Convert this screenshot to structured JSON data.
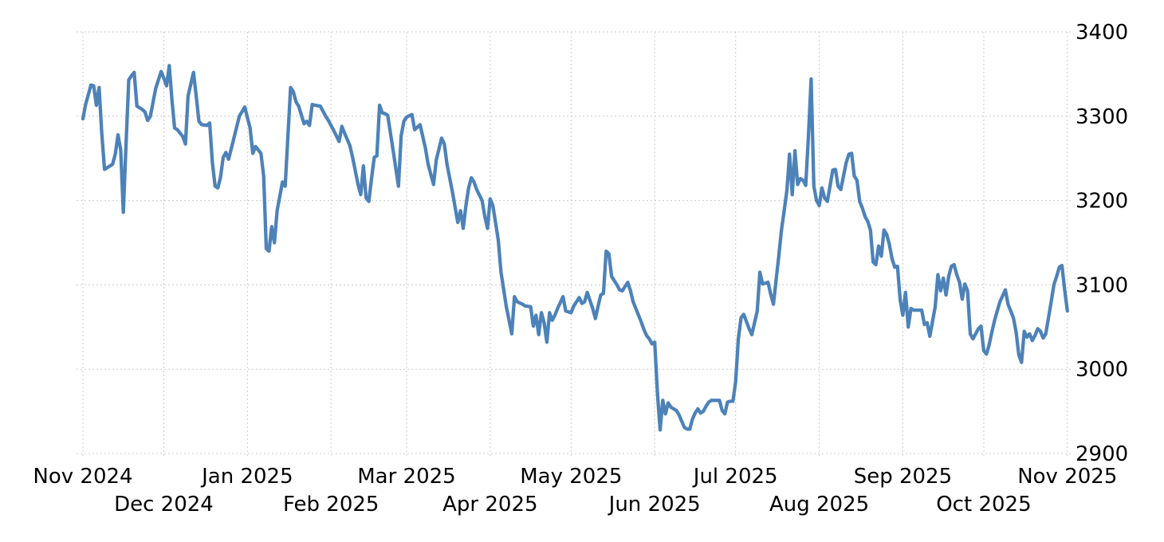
{
  "page": {
    "background": "#ffffff"
  },
  "chart_data": {
    "type": "line",
    "grid": "dotted",
    "legend": "none",
    "line_color": "#4d82b9",
    "grid_color": "#cccccc",
    "text_color": "#000000",
    "x_range": [
      "2024-11-01",
      "2025-11-01"
    ],
    "x_axis": {
      "months": [
        {
          "label": "Nov 2024",
          "date": "2024-11-01",
          "row": 0
        },
        {
          "label": "Dec 2024",
          "date": "2024-12-01",
          "row": 1
        },
        {
          "label": "Jan 2025",
          "date": "2025-01-01",
          "row": 0
        },
        {
          "label": "Feb 2025",
          "date": "2025-02-01",
          "row": 1
        },
        {
          "label": "Mar 2025",
          "date": "2025-03-01",
          "row": 0
        },
        {
          "label": "Apr 2025",
          "date": "2025-04-01",
          "row": 1
        },
        {
          "label": "May 2025",
          "date": "2025-05-01",
          "row": 0
        },
        {
          "label": "Jun 2025",
          "date": "2025-06-01",
          "row": 1
        },
        {
          "label": "Jul 2025",
          "date": "2025-07-01",
          "row": 0
        },
        {
          "label": "Aug 2025",
          "date": "2025-08-01",
          "row": 1
        },
        {
          "label": "Sep 2025",
          "date": "2025-09-01",
          "row": 0
        },
        {
          "label": "Oct 2025",
          "date": "2025-10-01",
          "row": 1
        },
        {
          "label": "Nov 2025",
          "date": "2025-11-01",
          "row": 0
        }
      ]
    },
    "y_axis": {
      "side": "right",
      "min": 2900,
      "max": 3400,
      "ticks": [
        2900,
        3000,
        3100,
        3200,
        3300,
        3400
      ]
    },
    "dates": [
      "2024-11-01",
      "2024-11-02",
      "2024-11-04",
      "2024-11-05",
      "2024-11-06",
      "2024-11-07",
      "2024-11-08",
      "2024-11-09",
      "2024-11-12",
      "2024-11-13",
      "2024-11-14",
      "2024-11-15",
      "2024-11-16",
      "2024-11-17",
      "2024-11-18",
      "2024-11-19",
      "2024-11-20",
      "2024-11-21",
      "2024-11-23",
      "2024-11-24",
      "2024-11-25",
      "2024-11-26",
      "2024-11-28",
      "2024-11-30",
      "2024-12-01",
      "2024-12-02",
      "2024-12-03",
      "2024-12-04",
      "2024-12-05",
      "2024-12-06",
      "2024-12-08",
      "2024-12-09",
      "2024-12-10",
      "2024-12-12",
      "2024-12-13",
      "2024-12-14",
      "2024-12-15",
      "2024-12-17",
      "2024-12-18",
      "2024-12-19",
      "2024-12-20",
      "2024-12-21",
      "2024-12-22",
      "2024-12-23",
      "2024-12-24",
      "2024-12-25",
      "2024-12-27",
      "2024-12-29",
      "2024-12-31",
      "2025-01-01",
      "2025-01-02",
      "2025-01-03",
      "2025-01-04",
      "2025-01-06",
      "2025-01-07",
      "2025-01-08",
      "2025-01-09",
      "2025-01-10",
      "2025-01-11",
      "2025-01-12",
      "2025-01-14",
      "2025-01-15",
      "2025-01-16",
      "2025-01-17",
      "2025-01-18",
      "2025-01-19",
      "2025-01-20",
      "2025-01-22",
      "2025-01-23",
      "2025-01-24",
      "2025-01-25",
      "2025-01-26",
      "2025-01-28",
      "2025-01-30",
      "2025-01-31",
      "2025-02-01",
      "2025-02-02",
      "2025-02-04",
      "2025-02-05",
      "2025-02-06",
      "2025-02-08",
      "2025-02-09",
      "2025-02-11",
      "2025-02-12",
      "2025-02-13",
      "2025-02-14",
      "2025-02-15",
      "2025-02-16",
      "2025-02-17",
      "2025-02-18",
      "2025-02-19",
      "2025-02-20",
      "2025-02-21",
      "2025-02-22",
      "2025-02-24",
      "2025-02-26",
      "2025-02-27",
      "2025-02-28",
      "2025-03-01",
      "2025-03-03",
      "2025-03-04",
      "2025-03-06",
      "2025-03-08",
      "2025-03-09",
      "2025-03-11",
      "2025-03-12",
      "2025-03-14",
      "2025-03-15",
      "2025-03-16",
      "2025-03-18",
      "2025-03-20",
      "2025-03-21",
      "2025-03-22",
      "2025-03-23",
      "2025-03-24",
      "2025-03-25",
      "2025-03-26",
      "2025-03-27",
      "2025-03-29",
      "2025-03-30",
      "2025-03-31",
      "2025-04-01",
      "2025-04-02",
      "2025-04-04",
      "2025-04-05",
      "2025-04-07",
      "2025-04-08",
      "2025-04-09",
      "2025-04-10",
      "2025-04-11",
      "2025-04-13",
      "2025-04-14",
      "2025-04-16",
      "2025-04-17",
      "2025-04-18",
      "2025-04-19",
      "2025-04-20",
      "2025-04-21",
      "2025-04-22",
      "2025-04-23",
      "2025-04-24",
      "2025-04-25",
      "2025-04-26",
      "2025-04-27",
      "2025-04-28",
      "2025-04-29",
      "2025-05-01",
      "2025-05-02",
      "2025-05-04",
      "2025-05-05",
      "2025-05-06",
      "2025-05-07",
      "2025-05-09",
      "2025-05-10",
      "2025-05-11",
      "2025-05-12",
      "2025-05-13",
      "2025-05-14",
      "2025-05-15",
      "2025-05-16",
      "2025-05-17",
      "2025-05-18",
      "2025-05-19",
      "2025-05-20",
      "2025-05-21",
      "2025-05-22",
      "2025-05-23",
      "2025-05-24",
      "2025-05-25",
      "2025-05-26",
      "2025-05-27",
      "2025-05-28",
      "2025-05-29",
      "2025-05-30",
      "2025-05-31",
      "2025-06-01",
      "2025-06-02",
      "2025-06-03",
      "2025-06-04",
      "2025-06-05",
      "2025-06-06",
      "2025-06-07",
      "2025-06-08",
      "2025-06-09",
      "2025-06-10",
      "2025-06-12",
      "2025-06-13",
      "2025-06-14",
      "2025-06-15",
      "2025-06-16",
      "2025-06-17",
      "2025-06-18",
      "2025-06-19",
      "2025-06-20",
      "2025-06-21",
      "2025-06-22",
      "2025-06-23",
      "2025-06-25",
      "2025-06-26",
      "2025-06-27",
      "2025-06-28",
      "2025-06-29",
      "2025-06-30",
      "2025-07-01",
      "2025-07-02",
      "2025-07-03",
      "2025-07-04",
      "2025-07-06",
      "2025-07-07",
      "2025-07-08",
      "2025-07-09",
      "2025-07-10",
      "2025-07-11",
      "2025-07-13",
      "2025-07-14",
      "2025-07-15",
      "2025-07-17",
      "2025-07-18",
      "2025-07-19",
      "2025-07-20",
      "2025-07-21",
      "2025-07-22",
      "2025-07-23",
      "2025-07-24",
      "2025-07-25",
      "2025-07-26",
      "2025-07-27",
      "2025-07-28",
      "2025-07-29",
      "2025-07-30",
      "2025-07-31",
      "2025-08-01",
      "2025-08-02",
      "2025-08-03",
      "2025-08-04",
      "2025-08-05",
      "2025-08-06",
      "2025-08-07",
      "2025-08-08",
      "2025-08-09",
      "2025-08-10",
      "2025-08-11",
      "2025-08-12",
      "2025-08-13",
      "2025-08-14",
      "2025-08-15",
      "2025-08-16",
      "2025-08-17",
      "2025-08-18",
      "2025-08-19",
      "2025-08-20",
      "2025-08-21",
      "2025-08-22",
      "2025-08-23",
      "2025-08-24",
      "2025-08-25",
      "2025-08-26",
      "2025-08-27",
      "2025-08-28",
      "2025-08-29",
      "2025-08-30",
      "2025-08-31",
      "2025-09-01",
      "2025-09-02",
      "2025-09-03",
      "2025-09-04",
      "2025-09-05",
      "2025-09-07",
      "2025-09-08",
      "2025-09-09",
      "2025-09-10",
      "2025-09-11",
      "2025-09-13",
      "2025-09-14",
      "2025-09-15",
      "2025-09-16",
      "2025-09-17",
      "2025-09-18",
      "2025-09-19",
      "2025-09-20",
      "2025-09-21",
      "2025-09-22",
      "2025-09-23",
      "2025-09-24",
      "2025-09-25",
      "2025-09-26",
      "2025-09-27",
      "2025-09-28",
      "2025-09-29",
      "2025-09-30",
      "2025-10-01",
      "2025-10-02",
      "2025-10-03",
      "2025-10-04",
      "2025-10-05",
      "2025-10-07",
      "2025-10-09",
      "2025-10-10",
      "2025-10-12",
      "2025-10-13",
      "2025-10-14",
      "2025-10-15",
      "2025-10-16",
      "2025-10-17",
      "2025-10-18",
      "2025-10-19",
      "2025-10-20",
      "2025-10-21",
      "2025-10-22",
      "2025-10-23",
      "2025-10-24",
      "2025-10-25",
      "2025-10-26",
      "2025-10-27",
      "2025-10-28",
      "2025-10-29",
      "2025-10-30",
      "2025-10-31",
      "2025-11-01"
    ],
    "values": [
      3297,
      3314,
      3337,
      3336,
      3313,
      3334,
      3279,
      3237,
      3243,
      3255,
      3278,
      3260,
      3186,
      3267,
      3343,
      3348,
      3352,
      3312,
      3308,
      3305,
      3295,
      3300,
      3333,
      3353,
      3345,
      3336,
      3360,
      3320,
      3286,
      3284,
      3276,
      3267,
      3324,
      3352,
      3324,
      3294,
      3290,
      3289,
      3292,
      3245,
      3217,
      3215,
      3227,
      3251,
      3257,
      3249,
      3274,
      3300,
      3311,
      3298,
      3286,
      3256,
      3264,
      3256,
      3229,
      3143,
      3140,
      3169,
      3150,
      3188,
      3222,
      3217,
      3276,
      3334,
      3329,
      3317,
      3312,
      3291,
      3294,
      3289,
      3314,
      3313,
      3312,
      3300,
      3295,
      3289,
      3283,
      3270,
      3288,
      3280,
      3265,
      3251,
      3219,
      3207,
      3241,
      3203,
      3199,
      3226,
      3251,
      3253,
      3313,
      3304,
      3303,
      3301,
      3260,
      3217,
      3277,
      3294,
      3299,
      3302,
      3284,
      3290,
      3262,
      3243,
      3219,
      3248,
      3274,
      3267,
      3243,
      3210,
      3174,
      3188,
      3167,
      3194,
      3215,
      3227,
      3222,
      3213,
      3200,
      3181,
      3167,
      3202,
      3194,
      3153,
      3115,
      3074,
      3058,
      3042,
      3086,
      3080,
      3077,
      3075,
      3074,
      3051,
      3064,
      3041,
      3067,
      3055,
      3032,
      3067,
      3058,
      3064,
      3072,
      3079,
      3086,
      3069,
      3067,
      3075,
      3085,
      3078,
      3080,
      3091,
      3072,
      3060,
      3075,
      3088,
      3090,
      3140,
      3137,
      3110,
      3105,
      3100,
      3094,
      3093,
      3098,
      3103,
      3093,
      3080,
      3072,
      3064,
      3056,
      3047,
      3040,
      3036,
      3030,
      3032,
      2972,
      2928,
      2963,
      2947,
      2960,
      2955,
      2953,
      2951,
      2946,
      2931,
      2929,
      2929,
      2941,
      2948,
      2953,
      2948,
      2950,
      2956,
      2961,
      2963,
      2963,
      2963,
      2951,
      2947,
      2961,
      2962,
      2962,
      2985,
      3036,
      3061,
      3065,
      3048,
      3041,
      3055,
      3069,
      3115,
      3101,
      3103,
      3089,
      3077,
      3134,
      3165,
      3188,
      3212,
      3255,
      3207,
      3259,
      3219,
      3226,
      3224,
      3218,
      3276,
      3344,
      3217,
      3200,
      3194,
      3215,
      3203,
      3199,
      3217,
      3236,
      3237,
      3217,
      3213,
      3229,
      3245,
      3255,
      3256,
      3229,
      3224,
      3199,
      3191,
      3181,
      3175,
      3165,
      3127,
      3124,
      3146,
      3134,
      3165,
      3160,
      3148,
      3131,
      3121,
      3122,
      3082,
      3064,
      3091,
      3050,
      3072,
      3070,
      3070,
      3070,
      3053,
      3055,
      3039,
      3074,
      3112,
      3093,
      3108,
      3088,
      3110,
      3122,
      3124,
      3112,
      3103,
      3083,
      3101,
      3093,
      3042,
      3036,
      3042,
      3048,
      3051,
      3022,
      3018,
      3029,
      3044,
      3058,
      3080,
      3094,
      3077,
      3061,
      3044,
      3017,
      3008,
      3045,
      3038,
      3042,
      3034,
      3040,
      3048,
      3045,
      3037,
      3042,
      3061,
      3080,
      3100,
      3110,
      3121,
      3123,
      3094,
      3069
    ]
  }
}
